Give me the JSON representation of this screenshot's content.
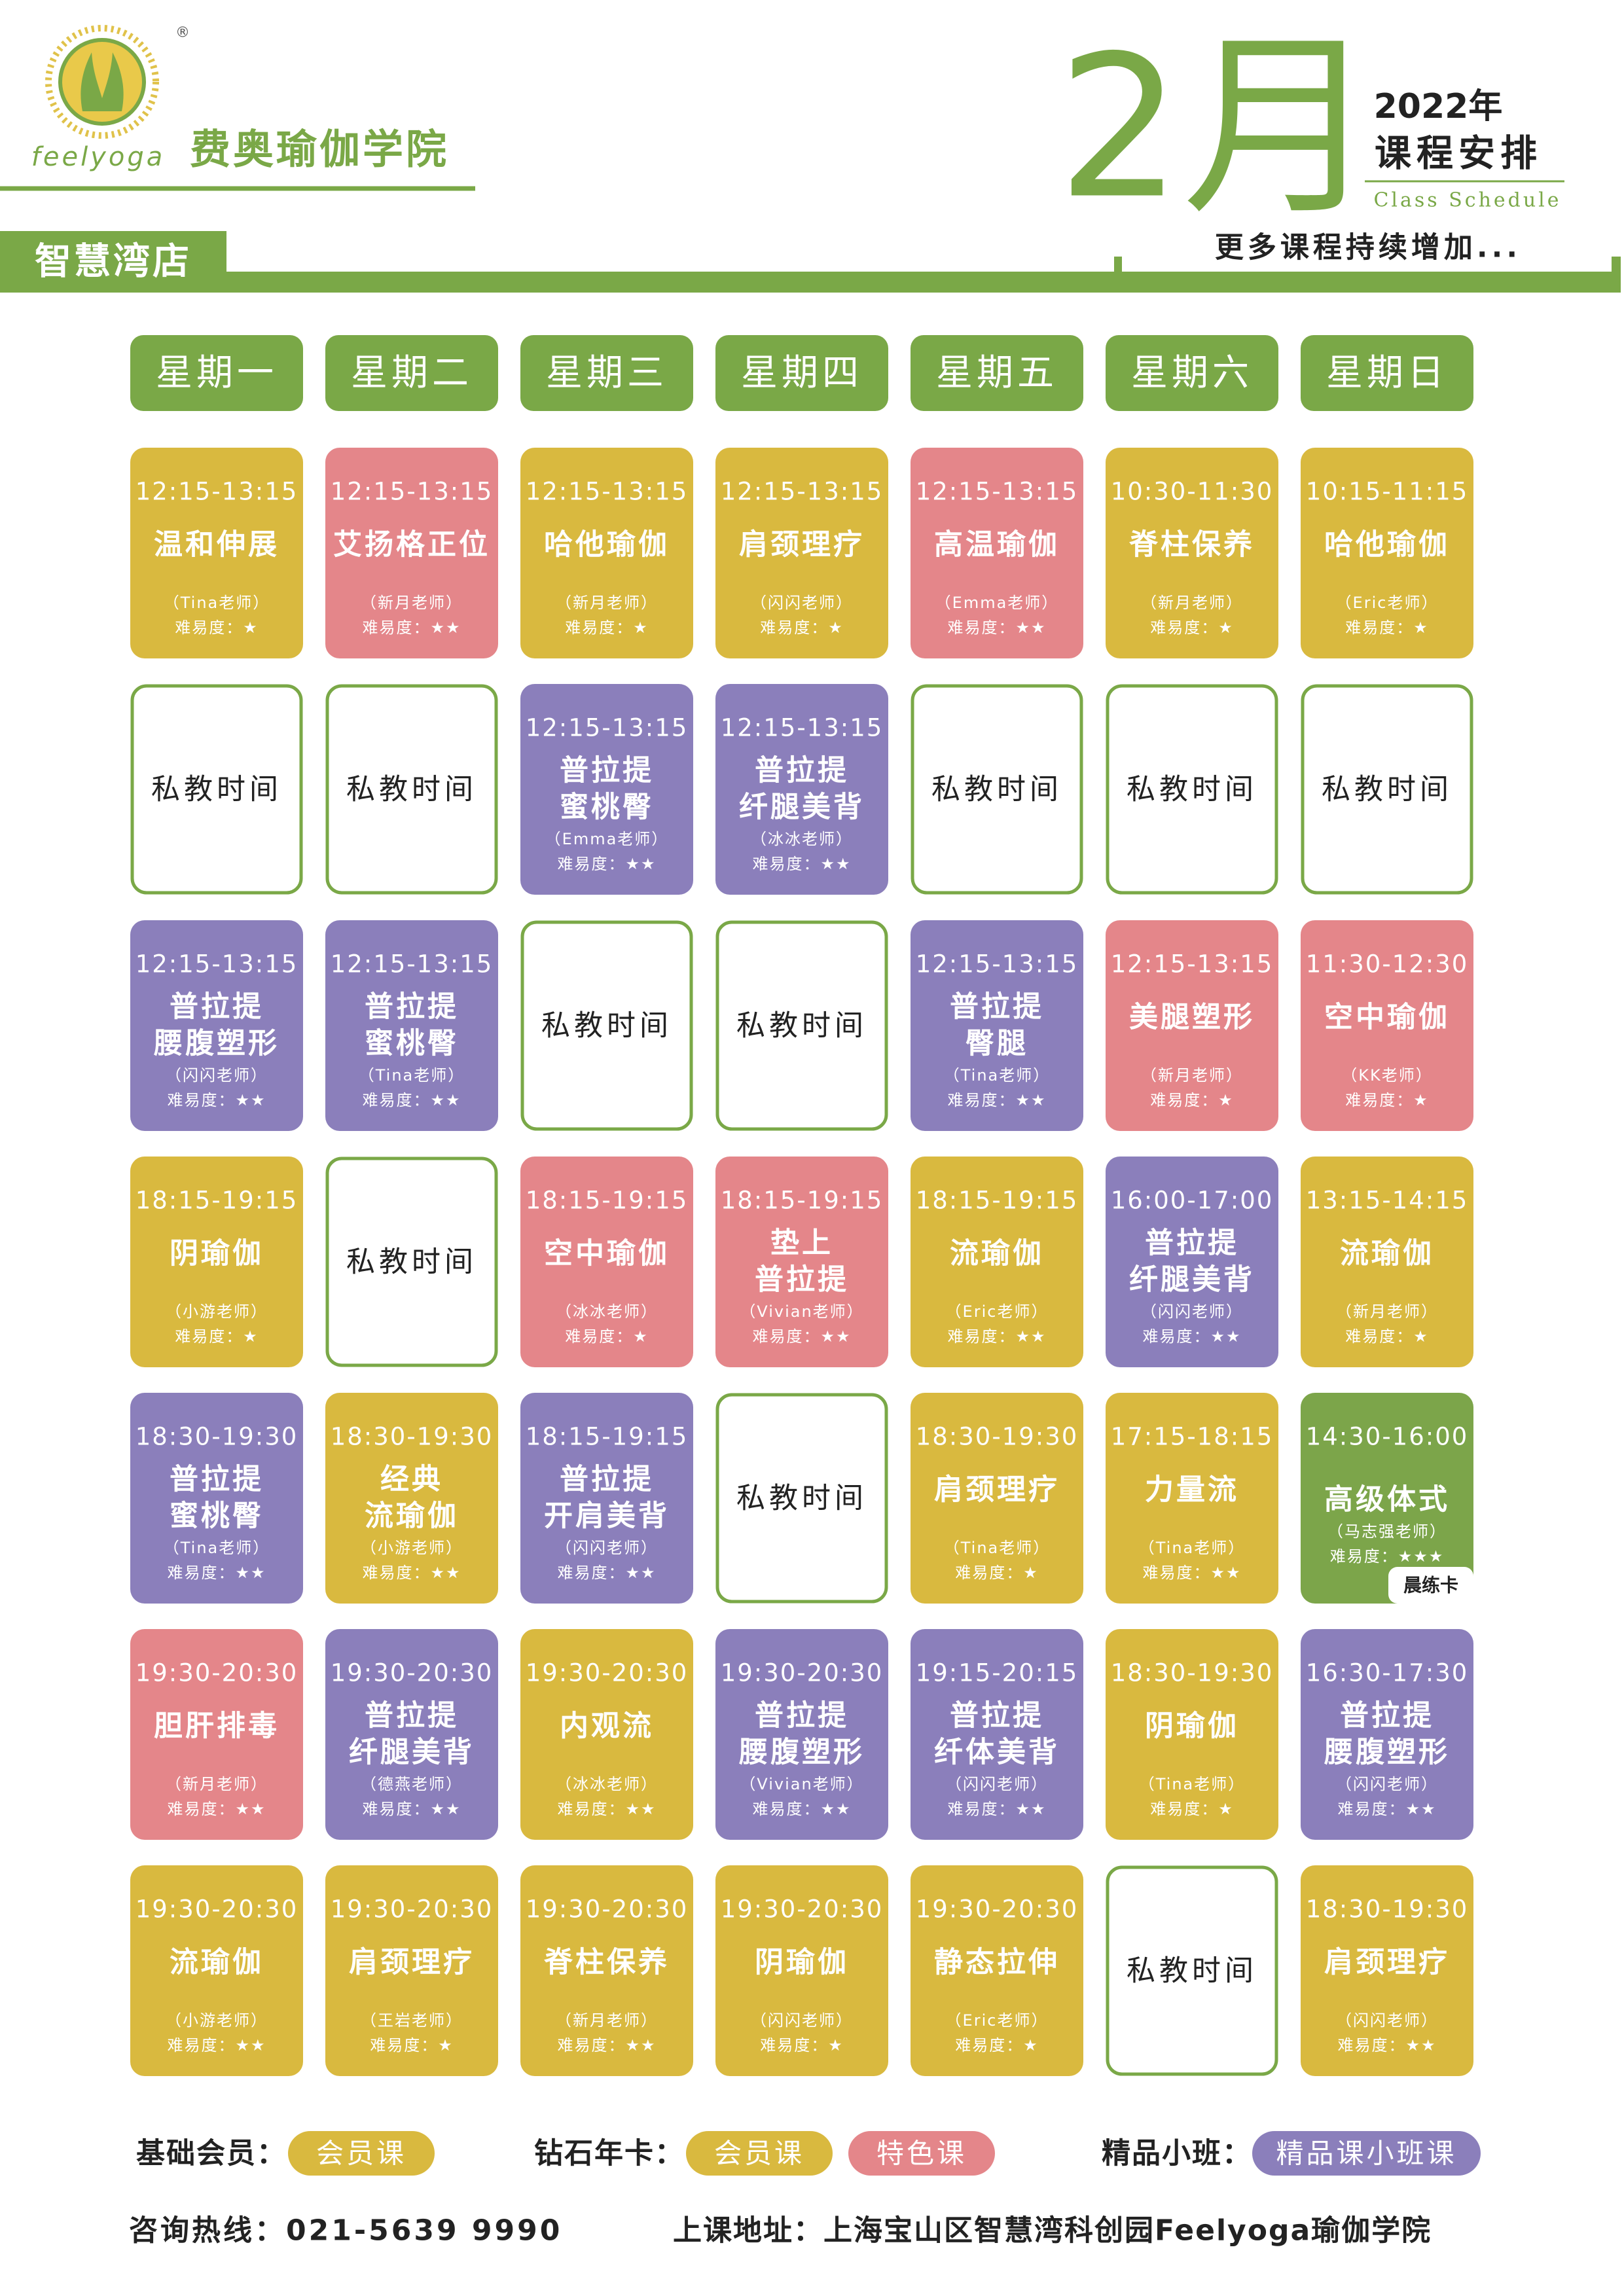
{
  "header": {
    "brand": "feelyoga",
    "registered": "®",
    "school": "费奥瑜伽学院",
    "month": "2月",
    "year": "2022年",
    "subtitle": "课程安排",
    "subtitle_en": "Class Schedule",
    "more": "更多课程持续增加...",
    "branch": "智慧湾店"
  },
  "schedule": {
    "days": [
      "星期一",
      "星期二",
      "星期三",
      "星期四",
      "星期五",
      "星期六",
      "星期日"
    ],
    "rows": [
      [
        {
          "color": "#d9b93f",
          "time": "12:15-13:15",
          "name": [
            "温和伸展"
          ],
          "teacher": "（Tina老师）",
          "difficulty": "难易度：★"
        },
        {
          "color": "#e4868a",
          "time": "12:15-13:15",
          "name": [
            "艾扬格正位"
          ],
          "teacher": "（新月老师）",
          "difficulty": "难易度：★★"
        },
        {
          "color": "#d9b93f",
          "time": "12:15-13:15",
          "name": [
            "哈他瑜伽"
          ],
          "teacher": "（新月老师）",
          "difficulty": "难易度：★"
        },
        {
          "color": "#d9b93f",
          "time": "12:15-13:15",
          "name": [
            "肩颈理疗"
          ],
          "teacher": "（闪闪老师）",
          "difficulty": "难易度：★"
        },
        {
          "color": "#e4868a",
          "time": "12:15-13:15",
          "name": [
            "高温瑜伽"
          ],
          "teacher": "（Emma老师）",
          "difficulty": "难易度：★★"
        },
        {
          "color": "#d9b93f",
          "time": "10:30-11:30",
          "name": [
            "脊柱保养"
          ],
          "teacher": "（新月老师）",
          "difficulty": "难易度：★"
        },
        {
          "color": "#d9b93f",
          "time": "10:15-11:15",
          "name": [
            "哈他瑜伽"
          ],
          "teacher": "（Eric老师）",
          "difficulty": "难易度：★"
        }
      ],
      [
        {
          "name": [
            "私教时间"
          ]
        },
        {
          "name": [
            "私教时间"
          ]
        },
        {
          "color": "#8b7fbb",
          "time": "12:15-13:15",
          "name": [
            "普拉提",
            "蜜桃臀"
          ],
          "teacher": "（Emma老师）",
          "difficulty": "难易度：★★"
        },
        {
          "color": "#8b7fbb",
          "time": "12:15-13:15",
          "name": [
            "普拉提",
            "纤腿美背"
          ],
          "teacher": "（冰冰老师）",
          "difficulty": "难易度：★★"
        },
        {
          "name": [
            "私教时间"
          ]
        },
        {
          "name": [
            "私教时间"
          ]
        },
        {
          "name": [
            "私教时间"
          ]
        }
      ],
      [
        {
          "color": "#8b7fbb",
          "time": "12:15-13:15",
          "name": [
            "普拉提",
            "腰腹塑形"
          ],
          "teacher": "（闪闪老师）",
          "difficulty": "难易度：★★"
        },
        {
          "color": "#8b7fbb",
          "time": "12:15-13:15",
          "name": [
            "普拉提",
            "蜜桃臀"
          ],
          "teacher": "（Tina老师）",
          "difficulty": "难易度：★★"
        },
        {
          "name": [
            "私教时间"
          ]
        },
        {
          "name": [
            "私教时间"
          ]
        },
        {
          "color": "#8b7fbb",
          "time": "12:15-13:15",
          "name": [
            "普拉提",
            "臀腿"
          ],
          "teacher": "（Tina老师）",
          "difficulty": "难易度：★★"
        },
        {
          "color": "#e4868a",
          "time": "12:15-13:15",
          "name": [
            "美腿塑形"
          ],
          "teacher": "（新月老师）",
          "difficulty": "难易度：★"
        },
        {
          "color": "#e4868a",
          "time": "11:30-12:30",
          "name": [
            "空中瑜伽"
          ],
          "teacher": "（KK老师）",
          "difficulty": "难易度：★"
        }
      ],
      [
        {
          "color": "#d9b93f",
          "time": "18:15-19:15",
          "name": [
            "阴瑜伽"
          ],
          "teacher": "（小游老师）",
          "difficulty": "难易度：★"
        },
        {
          "name": [
            "私教时间"
          ]
        },
        {
          "color": "#e4868a",
          "time": "18:15-19:15",
          "name": [
            "空中瑜伽"
          ],
          "teacher": "（冰冰老师）",
          "difficulty": "难易度：★"
        },
        {
          "color": "#e4868a",
          "time": "18:15-19:15",
          "name": [
            "垫上",
            "普拉提"
          ],
          "teacher": "（Vivian老师）",
          "difficulty": "难易度：★★"
        },
        {
          "color": "#d9b93f",
          "time": "18:15-19:15",
          "name": [
            "流瑜伽"
          ],
          "teacher": "（Eric老师）",
          "difficulty": "难易度：★★"
        },
        {
          "color": "#8b7fbb",
          "time": "16:00-17:00",
          "name": [
            "普拉提",
            "纤腿美背"
          ],
          "teacher": "（闪闪老师）",
          "difficulty": "难易度：★★"
        },
        {
          "color": "#d9b93f",
          "time": "13:15-14:15",
          "name": [
            "流瑜伽"
          ],
          "teacher": "（新月老师）",
          "difficulty": "难易度：★"
        }
      ],
      [
        {
          "color": "#8b7fbb",
          "time": "18:30-19:30",
          "name": [
            "普拉提",
            "蜜桃臀"
          ],
          "teacher": "（Tina老师）",
          "difficulty": "难易度：★★"
        },
        {
          "color": "#d9b93f",
          "time": "18:30-19:30",
          "name": [
            "经典",
            "流瑜伽"
          ],
          "teacher": "（小游老师）",
          "difficulty": "难易度：★★"
        },
        {
          "color": "#8b7fbb",
          "time": "18:15-19:15",
          "name": [
            "普拉提",
            "开肩美背"
          ],
          "teacher": "（闪闪老师）",
          "difficulty": "难易度：★★"
        },
        {
          "name": [
            "私教时间"
          ]
        },
        {
          "color": "#d9b93f",
          "time": "18:30-19:30",
          "name": [
            "肩颈理疗"
          ],
          "teacher": "（Tina老师）",
          "difficulty": "难易度：★"
        },
        {
          "color": "#d9b93f",
          "time": "17:15-18:15",
          "name": [
            "力量流"
          ],
          "teacher": "（Tina老师）",
          "difficulty": "难易度：★★"
        },
        {
          "color": "#7ca54a",
          "time": "14:30-16:00",
          "name": [
            "高级体式"
          ],
          "teacher": "（马志强老师）",
          "difficulty": "难易度：★★★",
          "tag": "晨练卡"
        }
      ],
      [
        {
          "color": "#e4868a",
          "time": "19:30-20:30",
          "name": [
            "胆肝排毒"
          ],
          "teacher": "（新月老师）",
          "difficulty": "难易度：★★"
        },
        {
          "color": "#8b7fbb",
          "time": "19:30-20:30",
          "name": [
            "普拉提",
            "纤腿美背"
          ],
          "teacher": "（德燕老师）",
          "difficulty": "难易度：★★"
        },
        {
          "color": "#d9b93f",
          "time": "19:30-20:30",
          "name": [
            "内观流"
          ],
          "teacher": "（冰冰老师）",
          "difficulty": "难易度：★★"
        },
        {
          "color": "#8b7fbb",
          "time": "19:30-20:30",
          "name": [
            "普拉提",
            "腰腹塑形"
          ],
          "teacher": "（Vivian老师）",
          "difficulty": "难易度：★★"
        },
        {
          "color": "#8b7fbb",
          "time": "19:15-20:15",
          "name": [
            "普拉提",
            "纤体美背"
          ],
          "teacher": "（闪闪老师）",
          "difficulty": "难易度：★★"
        },
        {
          "color": "#d9b93f",
          "time": "18:30-19:30",
          "name": [
            "阴瑜伽"
          ],
          "teacher": "（Tina老师）",
          "difficulty": "难易度：★"
        },
        {
          "color": "#8b7fbb",
          "time": "16:30-17:30",
          "name": [
            "普拉提",
            "腰腹塑形"
          ],
          "teacher": "（闪闪老师）",
          "difficulty": "难易度：★★"
        }
      ],
      [
        {
          "color": "#d9b93f",
          "time": "19:30-20:30",
          "name": [
            "流瑜伽"
          ],
          "teacher": "（小游老师）",
          "difficulty": "难易度：★★"
        },
        {
          "color": "#d9b93f",
          "time": "19:30-20:30",
          "name": [
            "肩颈理疗"
          ],
          "teacher": "（王岩老师）",
          "difficulty": "难易度：★"
        },
        {
          "color": "#d9b93f",
          "time": "19:30-20:30",
          "name": [
            "脊柱保养"
          ],
          "teacher": "（新月老师）",
          "difficulty": "难易度：★★"
        },
        {
          "color": "#d9b93f",
          "time": "19:30-20:30",
          "name": [
            "阴瑜伽"
          ],
          "teacher": "（闪闪老师）",
          "difficulty": "难易度：★"
        },
        {
          "color": "#d9b93f",
          "time": "19:30-20:30",
          "name": [
            "静态拉伸"
          ],
          "teacher": "（Eric老师）",
          "difficulty": "难易度：★"
        },
        {
          "name": [
            "私教时间"
          ]
        },
        {
          "color": "#d9b93f",
          "time": "18:30-19:30",
          "name": [
            "肩颈理疗"
          ],
          "teacher": "（闪闪老师）",
          "difficulty": "难易度：★★"
        }
      ]
    ]
  },
  "legend": [
    {
      "label": "基础会员：",
      "badges": [
        {
          "text": "会员课",
          "color": "#d9b93f"
        }
      ]
    },
    {
      "label": "钻石年卡：",
      "badges": [
        {
          "text": "会员课",
          "color": "#d9b93f"
        },
        {
          "text": "特色课",
          "color": "#e4868a"
        }
      ]
    },
    {
      "label": "精品小班：",
      "badges": [
        {
          "text": "精品课小班课",
          "color": "#8b7fbb"
        }
      ]
    }
  ],
  "footer": {
    "hotline": "咨询热线：021-5639 9990",
    "address": "上课地址：上海宝山区智慧湾科创园Feelyoga瑜伽学院"
  }
}
